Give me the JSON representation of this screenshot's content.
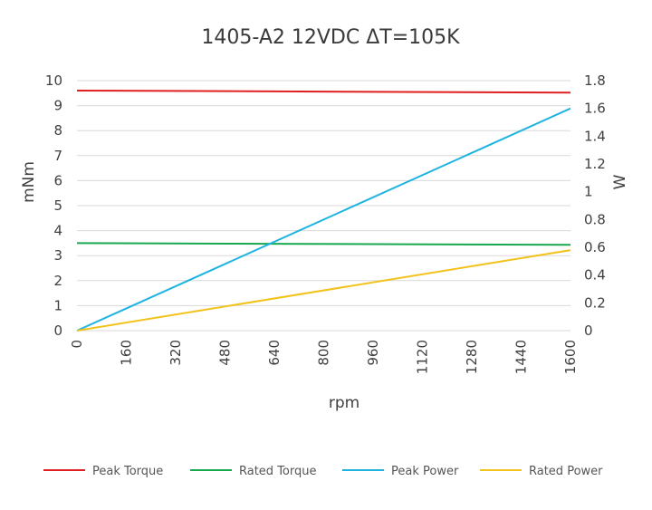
{
  "chart_data": {
    "type": "line",
    "title": "1405-A2 12VDC ΔT=105K",
    "xlabel": "rpm",
    "ylabel_left": "mNm",
    "ylabel_right": "W",
    "xlim": [
      0,
      1600
    ],
    "ylim_left": [
      0,
      10
    ],
    "ylim_right": [
      0,
      1.8
    ],
    "x_ticks": [
      "0",
      "160",
      "320",
      "480",
      "640",
      "800",
      "960",
      "1120",
      "1280",
      "1440",
      "1600"
    ],
    "y_left_ticks": [
      "0",
      "1",
      "2",
      "3",
      "4",
      "5",
      "6",
      "7",
      "8",
      "9",
      "10"
    ],
    "y_right_ticks": [
      "0",
      "0.2",
      "0.4",
      "0.6",
      "0.8",
      "1",
      "1.2",
      "1.4",
      "1.6",
      "1.8"
    ],
    "grid": "horizontal",
    "legend_position": "bottom",
    "series": [
      {
        "name": "Peak Torque",
        "axis": "left",
        "color": "#e02020",
        "x": [
          0,
          1600
        ],
        "y": [
          9.6,
          9.52
        ]
      },
      {
        "name": "Rated Torque",
        "axis": "left",
        "color": "#18a850",
        "x": [
          0,
          1600
        ],
        "y": [
          3.5,
          3.43
        ]
      },
      {
        "name": "Peak Power",
        "axis": "right",
        "color": "#1fb4e0",
        "x": [
          0,
          1600
        ],
        "y": [
          0,
          1.6
        ]
      },
      {
        "name": "Rated Power",
        "axis": "right",
        "color": "#f2c21a",
        "x": [
          0,
          1600
        ],
        "y": [
          0,
          0.58
        ]
      }
    ]
  }
}
